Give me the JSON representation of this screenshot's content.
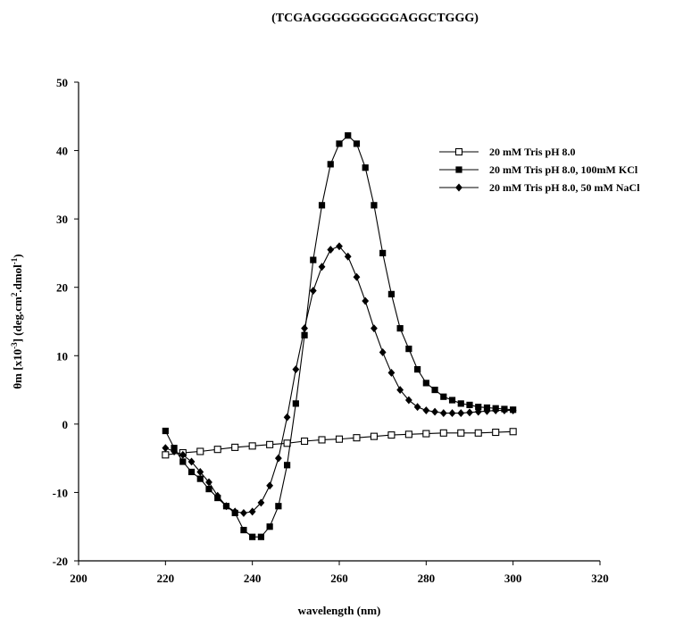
{
  "chart_data": {
    "type": "line",
    "title": "(TCGAGGGGGGGGGAGGCTGGG)",
    "xlabel": "wavelength (nm)",
    "ylabel": "θm [x10-3] (deg.cm2.dmol-1)",
    "xlim": [
      200,
      320
    ],
    "ylim": [
      -20,
      50
    ],
    "xticks": [
      "200",
      "220",
      "240",
      "260",
      "280",
      "300",
      "320"
    ],
    "yticks": [
      "-20",
      "-10",
      "0",
      "10",
      "20",
      "30",
      "40",
      "50"
    ],
    "legend_position": "top-right",
    "series": [
      {
        "name": "20 mM Tris pH 8.0",
        "marker": "open-square",
        "x": [
          220,
          224,
          228,
          232,
          236,
          240,
          244,
          248,
          252,
          256,
          260,
          264,
          268,
          272,
          276,
          280,
          284,
          288,
          292,
          296,
          300
        ],
        "y": [
          -4.5,
          -4.2,
          -4.0,
          -3.7,
          -3.4,
          -3.2,
          -3.0,
          -2.8,
          -2.5,
          -2.3,
          -2.2,
          -2.0,
          -1.8,
          -1.6,
          -1.5,
          -1.4,
          -1.3,
          -1.3,
          -1.3,
          -1.2,
          -1.1
        ]
      },
      {
        "name": "20 mM Tris pH 8.0, 100mM KCl",
        "marker": "filled-square",
        "x": [
          220,
          222,
          224,
          226,
          228,
          230,
          232,
          234,
          236,
          238,
          240,
          242,
          244,
          246,
          248,
          250,
          252,
          254,
          256,
          258,
          260,
          262,
          264,
          266,
          268,
          270,
          272,
          274,
          276,
          278,
          280,
          282,
          284,
          286,
          288,
          290,
          292,
          294,
          296,
          298,
          300
        ],
        "y": [
          -1.0,
          -3.5,
          -5.5,
          -7.0,
          -8.0,
          -9.5,
          -10.8,
          -12.0,
          -13.0,
          -15.5,
          -16.5,
          -16.5,
          -15.0,
          -12.0,
          -6.0,
          3.0,
          13.0,
          24.0,
          32.0,
          38.0,
          41.0,
          42.2,
          41.0,
          37.5,
          32.0,
          25.0,
          19.0,
          14.0,
          11.0,
          8.0,
          6.0,
          5.0,
          4.0,
          3.5,
          3.0,
          2.8,
          2.5,
          2.4,
          2.3,
          2.2,
          2.1
        ]
      },
      {
        "name": "20 mM Tris pH 8.0, 50 mM NaCl",
        "marker": "filled-diamond",
        "x": [
          220,
          222,
          224,
          226,
          228,
          230,
          232,
          234,
          236,
          238,
          240,
          242,
          244,
          246,
          248,
          250,
          252,
          254,
          256,
          258,
          260,
          262,
          264,
          266,
          268,
          270,
          272,
          274,
          276,
          278,
          280,
          282,
          284,
          286,
          288,
          290,
          292,
          294,
          296,
          298,
          300
        ],
        "y": [
          -3.5,
          -4.0,
          -4.5,
          -5.5,
          -7.0,
          -8.5,
          -10.5,
          -12.0,
          -12.8,
          -13.0,
          -12.8,
          -11.5,
          -9.0,
          -5.0,
          1.0,
          8.0,
          14.0,
          19.5,
          23.0,
          25.5,
          26.0,
          24.5,
          21.5,
          18.0,
          14.0,
          10.5,
          7.5,
          5.0,
          3.5,
          2.5,
          2.0,
          1.8,
          1.6,
          1.6,
          1.6,
          1.7,
          1.8,
          1.9,
          2.0,
          2.0,
          2.0
        ]
      }
    ]
  }
}
